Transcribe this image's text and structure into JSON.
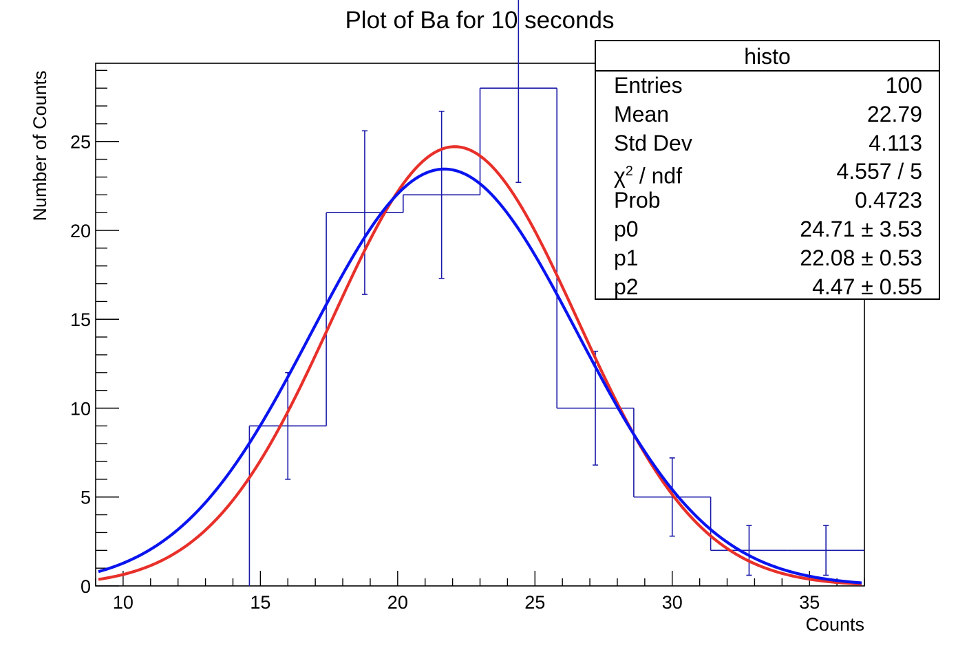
{
  "chart_data": {
    "type": "histogram",
    "title": "Plot of Ba for 10 seconds",
    "xlabel": "Counts",
    "ylabel": "Number of Counts",
    "xlim": [
      9,
      37
    ],
    "ylim": [
      0,
      29.4
    ],
    "xticks": [
      10,
      15,
      20,
      25,
      30,
      35
    ],
    "yticks": [
      0,
      5,
      10,
      15,
      20,
      25
    ],
    "bins": [
      {
        "lo": 14.6,
        "hi": 17.4,
        "value": 9,
        "err_lo": 3,
        "err_hi": 3
      },
      {
        "lo": 17.4,
        "hi": 20.2,
        "value": 21,
        "err_lo": 4.6,
        "err_hi": 4.6
      },
      {
        "lo": 20.2,
        "hi": 23.0,
        "value": 22,
        "err_lo": 4.7,
        "err_hi": 4.7
      },
      {
        "lo": 23.0,
        "hi": 25.8,
        "value": 28,
        "err_lo": 5.3,
        "err_hi": 5.3
      },
      {
        "lo": 25.8,
        "hi": 28.6,
        "value": 10,
        "err_lo": 3.2,
        "err_hi": 3.2
      },
      {
        "lo": 28.6,
        "hi": 31.4,
        "value": 5,
        "err_lo": 2.2,
        "err_hi": 2.2
      },
      {
        "lo": 31.4,
        "hi": 34.2,
        "value": 2,
        "err_lo": 1.4,
        "err_hi": 1.4
      },
      {
        "lo": 34.2,
        "hi": 37.0,
        "value": 2,
        "err_lo": 1.4,
        "err_hi": 1.4
      }
    ],
    "series": [
      {
        "color": "#e8302a",
        "function": "gaussian",
        "p0": 24.71,
        "p1": 22.08,
        "p2": 4.47
      },
      {
        "color": "#0a14ee",
        "function": "gaussian",
        "p0": 23.45,
        "p1": 21.7,
        "p2": 4.85
      }
    ],
    "histogram_color": "#1a1aa8",
    "stats_box": {
      "title": "histo",
      "rows": [
        {
          "key": "Entries",
          "value": "100"
        },
        {
          "key": "Mean",
          "value": "22.79"
        },
        {
          "key": "Std Dev",
          "value": "4.113"
        },
        {
          "key_prefix": "χ",
          "key_sup": "2",
          "key_suffix": " / ndf",
          "value": "4.557 / 5"
        },
        {
          "key": "Prob",
          "value": "0.4723"
        },
        {
          "key": "p0",
          "value": "24.71 ± 3.53"
        },
        {
          "key": "p1",
          "value": "22.08 ± 0.53"
        },
        {
          "key": "p2",
          "value": "4.47 ± 0.55"
        }
      ]
    }
  }
}
